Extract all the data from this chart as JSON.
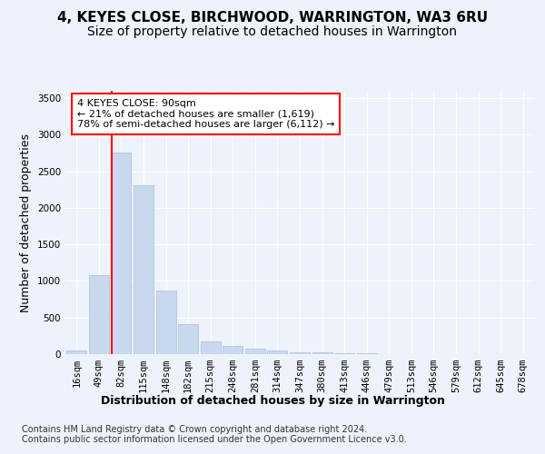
{
  "title": "4, KEYES CLOSE, BIRCHWOOD, WARRINGTON, WA3 6RU",
  "subtitle": "Size of property relative to detached houses in Warrington",
  "xlabel": "Distribution of detached houses by size in Warrington",
  "ylabel": "Number of detached properties",
  "bar_color": "#c8d9ef",
  "bar_edge_color": "#a8bfd8",
  "annotation_text": "4 KEYES CLOSE: 90sqm\n← 21% of detached houses are smaller (1,619)\n78% of semi-detached houses are larger (6,112) →",
  "footer_text": "Contains HM Land Registry data © Crown copyright and database right 2024.\nContains public sector information licensed under the Open Government Licence v3.0.",
  "categories": [
    "16sqm",
    "49sqm",
    "82sqm",
    "115sqm",
    "148sqm",
    "182sqm",
    "215sqm",
    "248sqm",
    "281sqm",
    "314sqm",
    "347sqm",
    "380sqm",
    "413sqm",
    "446sqm",
    "479sqm",
    "513sqm",
    "546sqm",
    "579sqm",
    "612sqm",
    "645sqm",
    "678sqm"
  ],
  "values": [
    50,
    1080,
    2750,
    2310,
    870,
    410,
    175,
    110,
    70,
    50,
    30,
    20,
    15,
    10,
    5,
    5,
    3,
    2,
    2,
    1,
    1
  ],
  "ylim": [
    0,
    3600
  ],
  "yticks": [
    0,
    500,
    1000,
    1500,
    2000,
    2500,
    3000,
    3500
  ],
  "background_color": "#eef2fa",
  "plot_bg_color": "#eef2fa",
  "grid_color": "white",
  "title_fontsize": 11,
  "subtitle_fontsize": 10,
  "axis_label_fontsize": 9,
  "tick_fontsize": 7.5,
  "footer_fontsize": 7,
  "red_line_index": 1.58
}
